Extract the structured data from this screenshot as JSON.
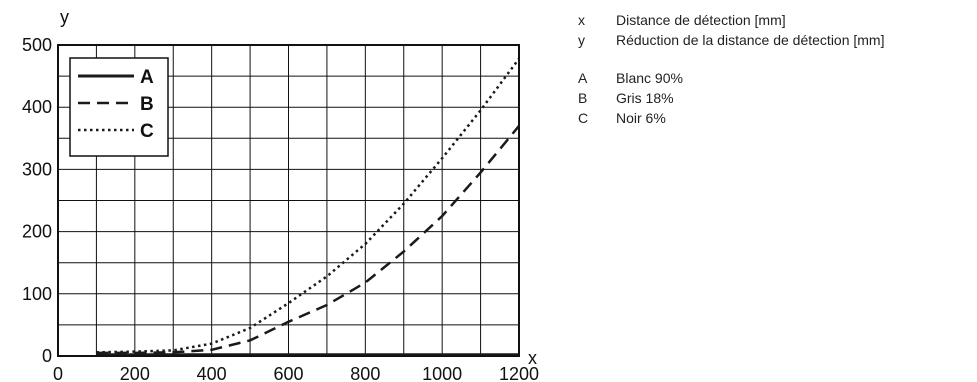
{
  "chart_data": {
    "type": "line",
    "title": "",
    "xlabel": "x",
    "ylabel": "y",
    "xlim": [
      0,
      1200
    ],
    "ylim": [
      0,
      500
    ],
    "x_ticks": [
      0,
      200,
      400,
      600,
      800,
      1000,
      1200
    ],
    "y_ticks": [
      0,
      100,
      200,
      300,
      400,
      500
    ],
    "grid": true,
    "legend_position": "top-left",
    "series": [
      {
        "name": "A",
        "dash": "solid",
        "x": [
          100,
          200,
          400,
          600,
          800,
          1000,
          1200
        ],
        "y": [
          2,
          2,
          2,
          2,
          2,
          2,
          2
        ]
      },
      {
        "name": "B",
        "dash": "dashed",
        "x": [
          100,
          200,
          300,
          400,
          500,
          600,
          700,
          800,
          900,
          1000,
          1100,
          1200
        ],
        "y": [
          5,
          5,
          6,
          10,
          25,
          55,
          82,
          118,
          168,
          225,
          295,
          370
        ]
      },
      {
        "name": "C",
        "dash": "dotted",
        "x": [
          100,
          200,
          300,
          400,
          500,
          600,
          700,
          800,
          900,
          1000,
          1100,
          1200
        ],
        "y": [
          6,
          7,
          9,
          20,
          45,
          85,
          128,
          180,
          245,
          318,
          395,
          478
        ]
      }
    ]
  },
  "notes": [
    {
      "key": "x",
      "text": "Distance de détection [mm]"
    },
    {
      "key": "y",
      "text": "Réduction de la distance de détection [mm]"
    },
    {
      "key": "A",
      "text": "Blanc 90%"
    },
    {
      "key": "B",
      "text": "Gris 18%"
    },
    {
      "key": "C",
      "text": "Noir 6%"
    }
  ]
}
